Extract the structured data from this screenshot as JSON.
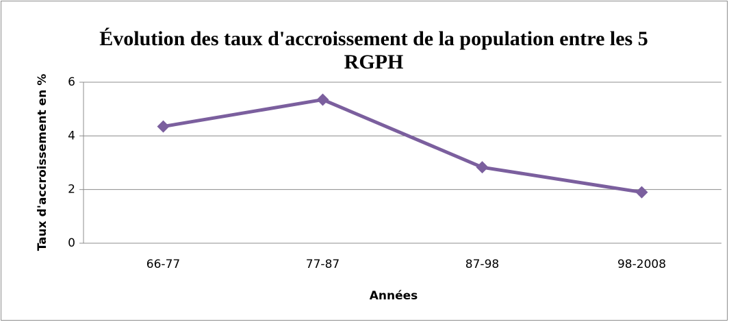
{
  "chart_data": {
    "type": "line",
    "title": "Évolution des taux d'accroissement de la population entre les 5 RGPH",
    "x_label": "Années",
    "y_label": "Taux d'accroissement en %",
    "categories": [
      "66-77",
      "77-87",
      "87-98",
      "98-2008"
    ],
    "series": [
      {
        "name": "Taux d'accroissement",
        "color": "#7b5f9e",
        "values": [
          4.35,
          5.35,
          2.83,
          1.9
        ]
      }
    ],
    "ylim": [
      0,
      6
    ],
    "yticks": [
      0,
      2,
      4,
      6
    ],
    "grid": true
  }
}
